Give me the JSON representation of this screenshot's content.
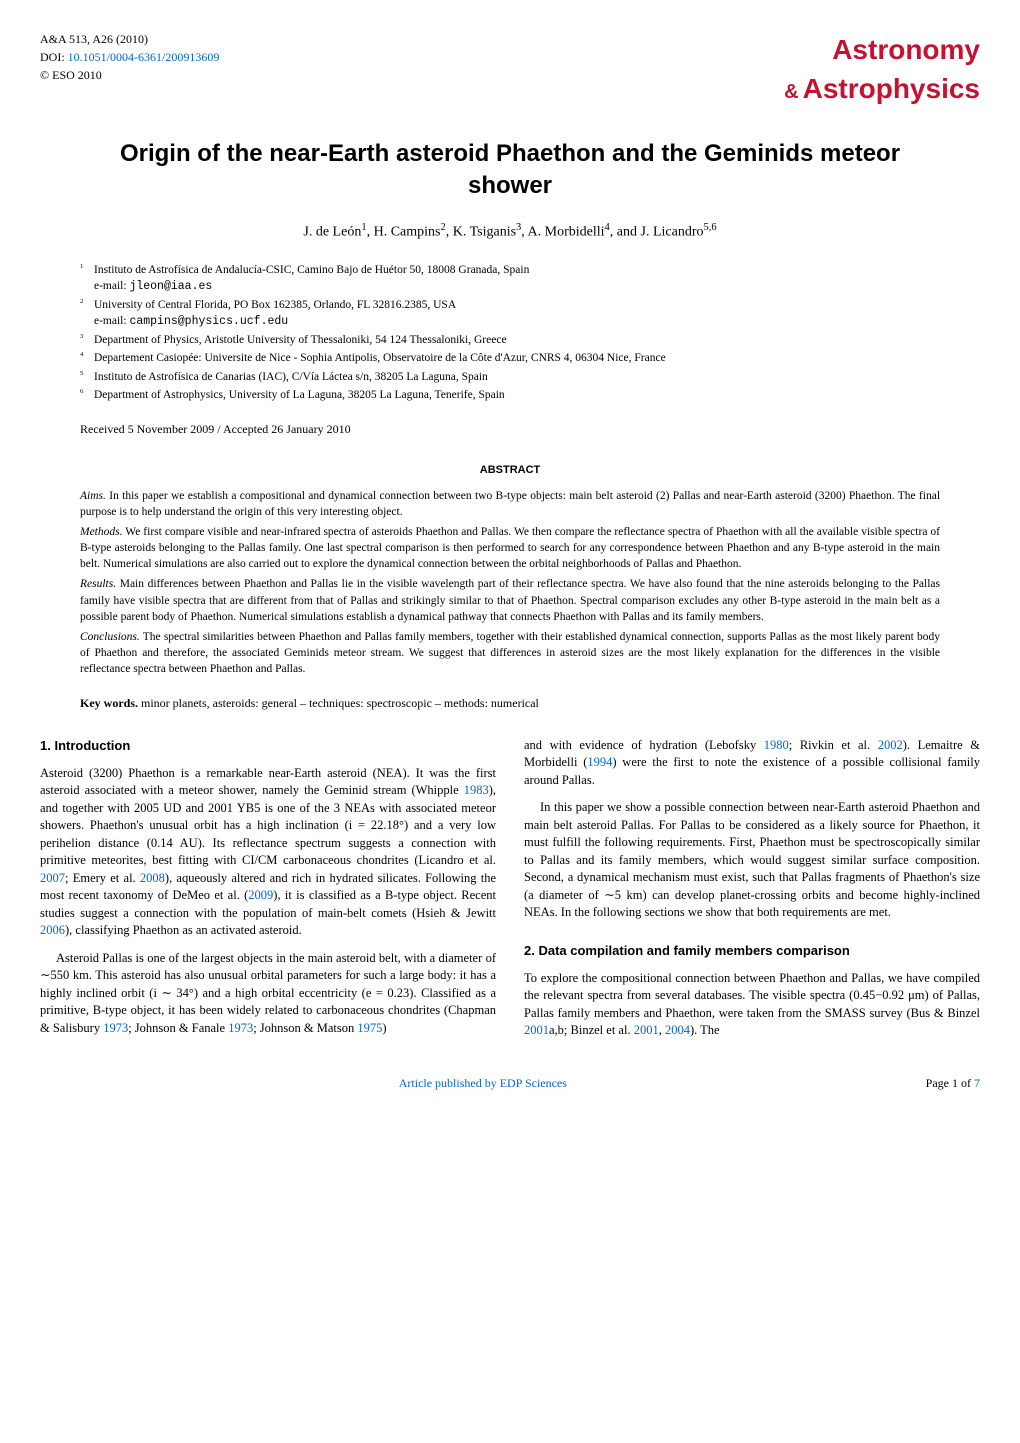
{
  "header": {
    "journal_ref": "A&A 513, A26 (2010)",
    "doi_label": "DOI: ",
    "doi": "10.1051/0004-6361/200913609",
    "copyright": "© ESO 2010",
    "logo_top": "Astronomy",
    "logo_amp": "&",
    "logo_bottom": "Astrophysics",
    "logo_color": "#c41230"
  },
  "title": "Origin of the near-Earth asteroid Phaethon and the Geminids meteor shower",
  "authors_html": "J. de León<sup>1</sup>, H. Campins<sup>2</sup>, K. Tsiganis<sup>3</sup>, A. Morbidelli<sup>4</sup>, and J. Licandro<sup>5,6</sup>",
  "affiliations": [
    {
      "num": "1",
      "text": "Instituto de Astrofísica de Andalucía-CSIC, Camino Bajo de Huétor 50, 18008 Granada, Spain",
      "email": "e-mail: jleon@iaa.es"
    },
    {
      "num": "2",
      "text": "University of Central Florida, PO Box 162385, Orlando, FL 32816.2385, USA",
      "email": "e-mail: campins@physics.ucf.edu"
    },
    {
      "num": "3",
      "text": "Department of Physics, Aristotle University of Thessaloniki, 54 124 Thessaloniki, Greece"
    },
    {
      "num": "4",
      "text": "Departement Casiopée: Universite de Nice - Sophia Antipolis, Observatoire de la Côte d'Azur, CNRS 4, 06304 Nice, France"
    },
    {
      "num": "5",
      "text": "Instituto de Astrofísica de Canarias (IAC), C/Vía Láctea s/n, 38205 La Laguna, Spain"
    },
    {
      "num": "6",
      "text": "Department of Astrophysics, University of La Laguna, 38205 La Laguna, Tenerife, Spain"
    }
  ],
  "received": "Received 5 November 2009 / Accepted 26 January 2010",
  "abstract": {
    "heading": "ABSTRACT",
    "aims_label": "Aims.",
    "aims": "In this paper we establish a compositional and dynamical connection between two B-type objects: main belt asteroid (2) Pallas and near-Earth asteroid (3200) Phaethon. The final purpose is to help understand the origin of this very interesting object.",
    "methods_label": "Methods.",
    "methods": "We first compare visible and near-infrared spectra of asteroids Phaethon and Pallas. We then compare the reflectance spectra of Phaethon with all the available visible spectra of B-type asteroids belonging to the Pallas family. One last spectral comparison is then performed to search for any correspondence between Phaethon and any B-type asteroid in the main belt. Numerical simulations are also carried out to explore the dynamical connection between the orbital neighborhoods of Pallas and Phaethon.",
    "results_label": "Results.",
    "results": "Main differences between Phaethon and Pallas lie in the visible wavelength part of their reflectance spectra. We have also found that the nine asteroids belonging to the Pallas family have visible spectra that are different from that of Pallas and strikingly similar to that of Phaethon. Spectral comparison excludes any other B-type asteroid in the main belt as a possible parent body of Phaethon. Numerical simulations establish a dynamical pathway that connects Phaethon with Pallas and its family members.",
    "conclusions_label": "Conclusions.",
    "conclusions": "The spectral similarities between Phaethon and Pallas family members, together with their established dynamical connection, supports Pallas as the most likely parent body of Phaethon and therefore, the associated Geminids meteor stream. We suggest that differences in asteroid sizes are the most likely explanation for the differences in the visible reflectance spectra between Phaethon and Pallas."
  },
  "keywords": {
    "label": "Key words.",
    "text": "minor planets, asteroids: general – techniques: spectroscopic – methods: numerical"
  },
  "sections": {
    "s1": {
      "heading": "1. Introduction",
      "p1a": "Asteroid (3200) Phaethon is a remarkable near-Earth asteroid (NEA). It was the first asteroid associated with a meteor shower, namely the Geminid stream (Whipple ",
      "c1": "1983",
      "p1b": "), and together with 2005 UD and 2001 YB5 is one of the 3 NEAs with associated meteor showers. Phaethon's unusual orbit has a high inclination (i = 22.18°) and a very low perihelion distance (0.14 AU). Its reflectance spectrum suggests a connection with primitive meteorites, best fitting with CI/CM carbonaceous chondrites (Licandro et al. ",
      "c2": "2007",
      "p1c": "; Emery et al. ",
      "c3": "2008",
      "p1d": "), aqueously altered and rich in hydrated silicates. Following the most recent taxonomy of DeMeo et al. (",
      "c4": "2009",
      "p1e": "), it is classified as a B-type object. Recent studies suggest a connection with the population of main-belt comets (Hsieh & Jewitt ",
      "c5": "2006",
      "p1f": "), classifying Phaethon as an activated asteroid.",
      "p2a": "Asteroid Pallas is one of the largest objects in the main asteroid belt, with a diameter of ∼550 km. This asteroid has also unusual orbital parameters for such a large body: it has a highly inclined orbit (i ∼ 34°) and a high orbital eccentricity (e = 0.23). Classified as a primitive, B-type object, it has been widely related to carbonaceous chondrites (Chapman & Salisbury ",
      "c6": "1973",
      "p2b": "; Johnson & Fanale ",
      "c7": "1973",
      "p2c": "; Johnson & Matson ",
      "c8": "1975",
      "p2d": ")"
    },
    "s1r": {
      "p1a": "and with evidence of hydration (Lebofsky ",
      "c1": "1980",
      "p1b": "; Rivkin et al. ",
      "c2": "2002",
      "p1c": "). Lemaitre & Morbidelli (",
      "c3": "1994",
      "p1d": ") were the first to note the existence of a possible collisional family around Pallas.",
      "p2": "In this paper we show a possible connection between near-Earth asteroid Phaethon and main belt asteroid Pallas. For Pallas to be considered as a likely source for Phaethon, it must fulfill the following requirements. First, Phaethon must be spectroscopically similar to Pallas and its family members, which would suggest similar surface composition. Second, a dynamical mechanism must exist, such that Pallas fragments of Phaethon's size (a diameter of ∼5 km) can develop planet-crossing orbits and become highly-inclined NEAs. In the following sections we show that both requirements are met."
    },
    "s2": {
      "heading": "2. Data compilation and family members comparison",
      "p1a": "To explore the compositional connection between Phaethon and Pallas, we have compiled the relevant spectra from several databases. The visible spectra (0.45−0.92 μm) of Pallas, Pallas family members and Phaethon, were taken from the SMASS survey (Bus & Binzel ",
      "c1": "2001",
      "p1b": "a,b; Binzel et al. ",
      "c2": "2001",
      "p1c": ", ",
      "c3": "2004",
      "p1d": "). The"
    }
  },
  "footer": {
    "link_text": "Article published by EDP Sciences",
    "page": "Page 1 of ",
    "page_total": "7"
  }
}
